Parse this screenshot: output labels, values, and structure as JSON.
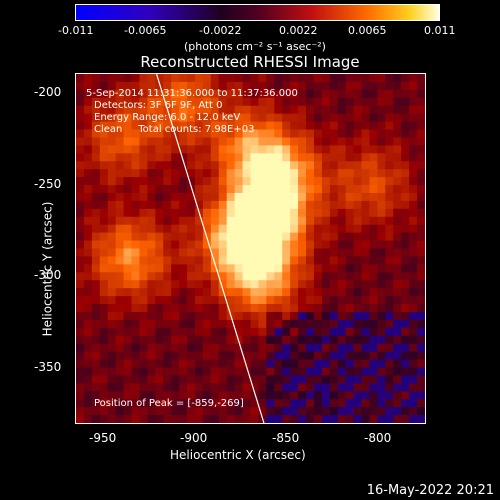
{
  "colorbar": {
    "ticks": [
      "-0.011",
      "-0.0065",
      "-0.0022",
      "0.0022",
      "0.0065",
      "0.011"
    ],
    "units_label": "(photons cm⁻² s⁻¹ asec⁻²)"
  },
  "plot": {
    "title": "Reconstructed RHESSI Image",
    "annotations": [
      "5-Sep-2014 11:31:36.000 to 11:37:36.000",
      "Detectors: 3F 6F 9F, Att 0",
      "Energy Range: 6.0 - 12.0 keV",
      "Clean     Total counts: 7.98E+03"
    ],
    "peak_label": "Position of Peak = [-859,-269]"
  },
  "footer": {
    "date": "16-May-2022 20:21"
  },
  "chart_data": {
    "type": "heatmap",
    "title": "Reconstructed RHESSI Image",
    "xlabel": "Heliocentric X (arcsec)",
    "ylabel": "Heliocentric Y (arcsec)",
    "xlim": [
      -965,
      -770
    ],
    "ylim": [
      -380,
      -190
    ],
    "x_ticks": [
      "-950",
      "-900",
      "-850",
      "-800"
    ],
    "y_ticks": [
      "-200",
      "-250",
      "-300",
      "-350"
    ],
    "x_tick_values": [
      -950,
      -900,
      -850,
      -800
    ],
    "y_tick_values": [
      -200,
      -250,
      -300,
      -350
    ],
    "colorbar_range": [
      -0.011,
      0.011
    ],
    "peak_position": [
      -859,
      -269
    ],
    "blobs": [
      {
        "x": -859,
        "y": -269,
        "strength": 1.0
      },
      {
        "x": -850,
        "y": -245,
        "strength": 0.75
      },
      {
        "x": -862,
        "y": -300,
        "strength": 0.8
      },
      {
        "x": -876,
        "y": -280,
        "strength": 0.65
      },
      {
        "x": -935,
        "y": -290,
        "strength": 0.7
      },
      {
        "x": -905,
        "y": -205,
        "strength": 0.55
      },
      {
        "x": -868,
        "y": -230,
        "strength": 0.6
      },
      {
        "x": -940,
        "y": -225,
        "strength": 0.5
      },
      {
        "x": -800,
        "y": -250,
        "strength": 0.45
      }
    ],
    "limb_line": [
      [
        -920,
        -190
      ],
      [
        -860,
        -380
      ]
    ]
  }
}
